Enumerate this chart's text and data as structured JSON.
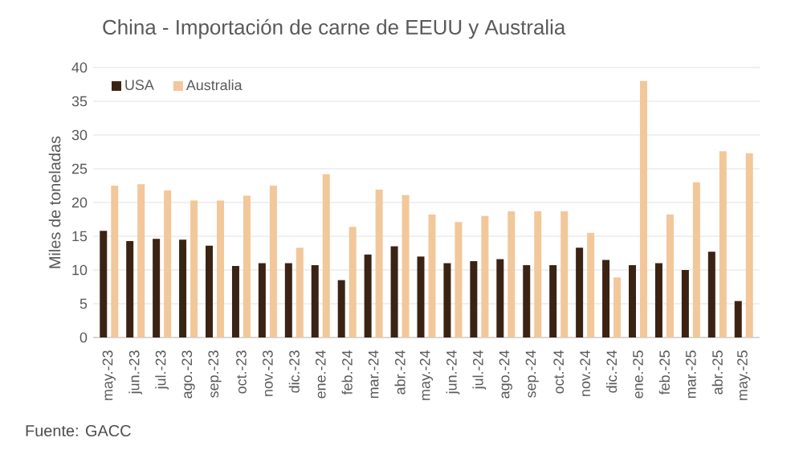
{
  "chart_data": {
    "type": "bar",
    "title": "China - Importación de carne de EEUU y Australia",
    "ylabel": "Miles de toneladas",
    "annotations": [
      "Fuente: GACC"
    ],
    "categories": [
      "may.-23",
      "jun.-23",
      "jul.-23",
      "ago.-23",
      "sep.-23",
      "oct.-23",
      "nov.-23",
      "dic.-23",
      "ene.-24",
      "feb.-24",
      "mar.-24",
      "abr.-24",
      "may.-24",
      "jun.-24",
      "jul.-24",
      "ago.-24",
      "sep.-24",
      "oct.-24",
      "nov.-24",
      "dic.-24",
      "ene.-25",
      "feb.-25",
      "mar.-25",
      "abr.-25",
      "may.-25"
    ],
    "series": [
      {
        "name": "USA",
        "color": "#3b2314",
        "values": [
          15.8,
          14.3,
          14.6,
          14.5,
          13.6,
          10.6,
          11.0,
          11.0,
          10.7,
          8.5,
          12.3,
          13.5,
          12.0,
          11.0,
          11.3,
          11.6,
          10.7,
          10.7,
          13.3,
          11.5,
          10.7,
          11.0,
          10.0,
          12.7,
          5.4
        ]
      },
      {
        "name": "Australia",
        "color": "#f2c79a",
        "values": [
          22.5,
          22.7,
          21.8,
          20.3,
          20.3,
          21.0,
          22.5,
          13.3,
          24.2,
          16.4,
          21.9,
          21.1,
          18.2,
          17.1,
          18.0,
          18.7,
          18.7,
          18.7,
          15.5,
          8.9,
          38.0,
          18.2,
          23.0,
          27.6,
          27.3
        ]
      }
    ],
    "ylim": [
      0,
      40
    ],
    "yticks": [
      0,
      5,
      10,
      15,
      20,
      25,
      30,
      35,
      40
    ],
    "grid": "y",
    "legend": "top left"
  }
}
